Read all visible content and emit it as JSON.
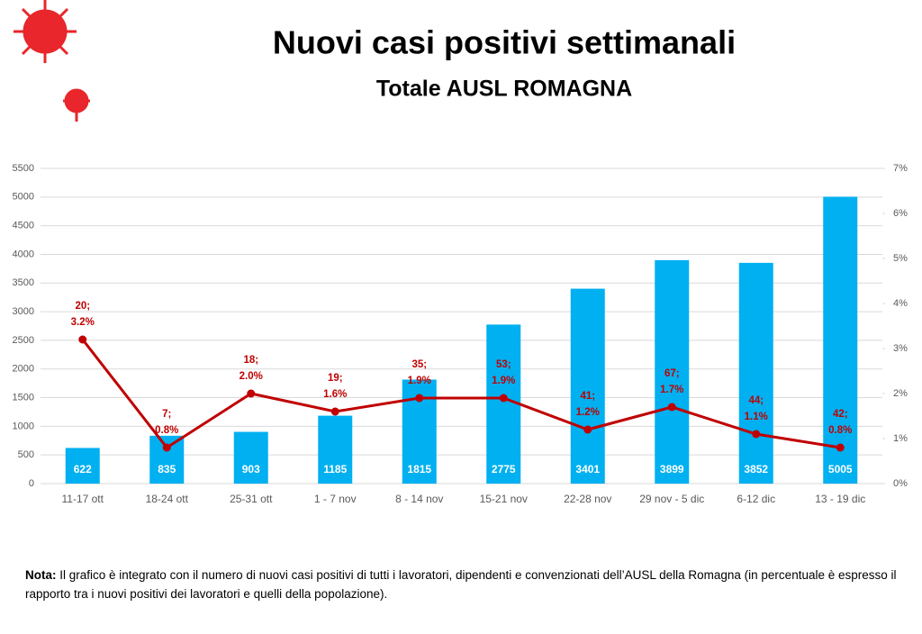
{
  "chart_data": {
    "type": "bar",
    "title": "Nuovi casi positivi settimanali",
    "subtitle": "Totale AUSL ROMAGNA",
    "categories": [
      "11-17 ott",
      "18-24 ott",
      "25-31 ott",
      "1 - 7 nov",
      "8 - 14 nov",
      "15-21 nov",
      "22-28 nov",
      "29 nov - 5 dic",
      "6-12 dic",
      "13 - 19 dic"
    ],
    "series": [
      {
        "type": "bar",
        "color": "#00b0f0",
        "values": [
          622,
          835,
          903,
          1185,
          1815,
          2775,
          3401,
          3899,
          3852,
          5005
        ]
      },
      {
        "type": "line",
        "axis": "y2",
        "color": "#c00000",
        "values": [
          3.2,
          0.8,
          2.0,
          1.6,
          1.9,
          1.9,
          1.2,
          1.7,
          1.1,
          0.8
        ],
        "value_labels": [
          [
            "20;",
            "3.2%"
          ],
          [
            "7;",
            "0.8%"
          ],
          [
            "18;",
            "2.0%"
          ],
          [
            "19;",
            "1.6%"
          ],
          [
            "35;",
            "1.9%"
          ],
          [
            "53;",
            "1.9%"
          ],
          [
            "41;",
            "1.2%"
          ],
          [
            "67;",
            "1.7%"
          ],
          [
            "44;",
            "1.1%"
          ],
          [
            "42;",
            "0.8%"
          ]
        ]
      }
    ],
    "ylim": [
      0,
      5500
    ],
    "yticks": [
      0,
      500,
      1000,
      1500,
      2000,
      2500,
      3000,
      3500,
      4000,
      4500,
      5000,
      5500
    ],
    "y2lim": [
      0,
      7
    ],
    "y2ticks": [
      {
        "value": 0,
        "label": "0%"
      },
      {
        "value": 1,
        "label": "1%"
      },
      {
        "value": 2,
        "label": "2%"
      },
      {
        "value": 3,
        "label": "3%"
      },
      {
        "value": 4,
        "label": "4%"
      },
      {
        "value": 5,
        "label": "5%"
      },
      {
        "value": 6,
        "label": "6%"
      },
      {
        "value": 7,
        "label": "7%"
      }
    ],
    "grid": true
  },
  "note": {
    "label": "Nota:",
    "text": " Il grafico è integrato con il numero di nuovi casi positivi di tutti i lavoratori, dipendenti e convenzionati dell’AUSL della Romagna (in percentuale è espresso il rapporto tra i nuovi positivi dei lavoratori e quelli della popolazione)."
  }
}
